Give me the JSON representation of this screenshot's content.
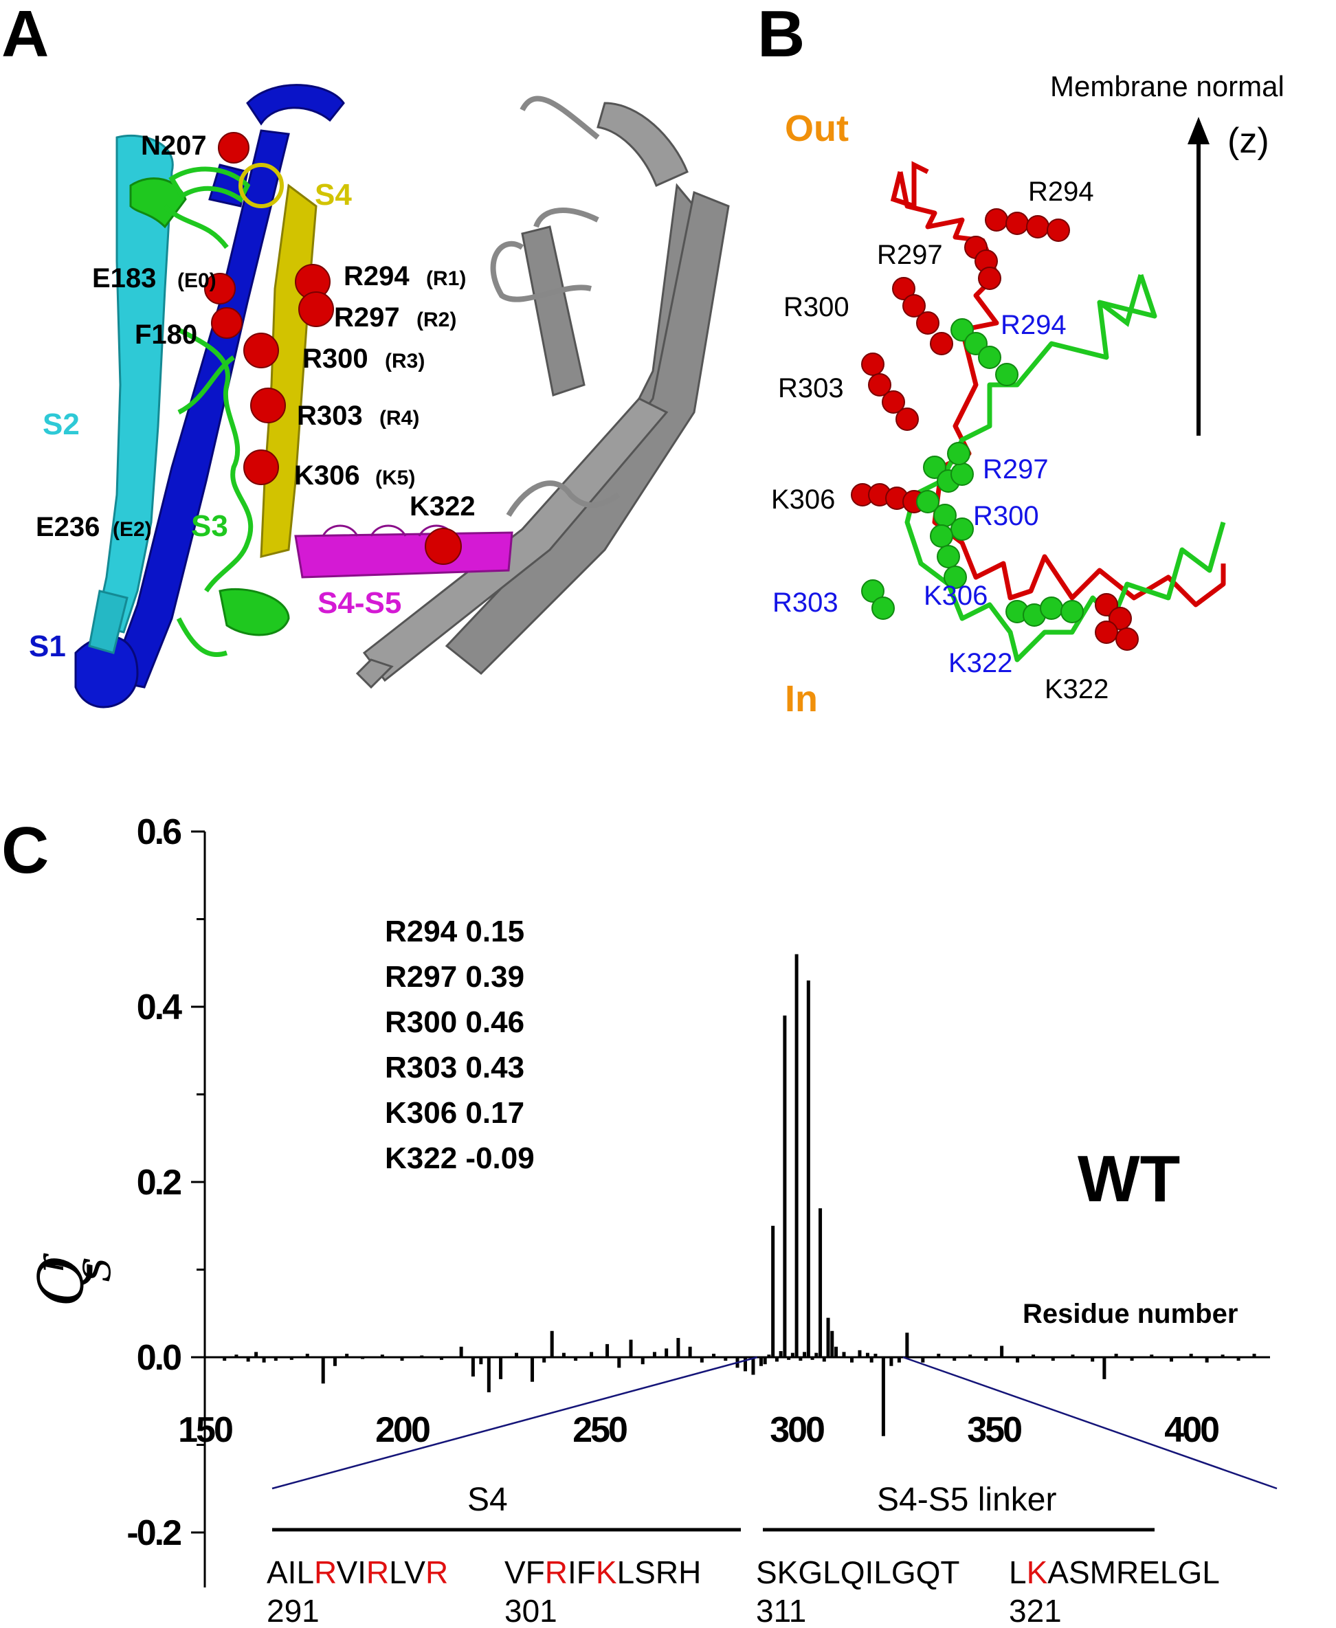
{
  "figure": {
    "panel_labels": [
      "A",
      "B",
      "C"
    ],
    "panel_a": {
      "residue_labels": [
        "N207",
        "E183",
        "F180",
        "E236",
        "R294",
        "R297",
        "R300",
        "R303",
        "K306",
        "K322"
      ],
      "residue_sublabels": [
        "(E0)",
        "(E2)",
        "(R1)",
        "(R2)",
        "(R3)",
        "(R4)",
        "(K5)"
      ],
      "segment_labels": [
        "S1",
        "S2",
        "S3",
        "S4",
        "S4-S5"
      ],
      "colors": {
        "S1": "#0a14c8",
        "S2": "#2ec9d6",
        "S3": "#1fc81f",
        "S4": "#d2c300",
        "S4S5": "#d41ad4",
        "pore": "#8a8a8a",
        "atom": "#d40000"
      }
    },
    "panel_b": {
      "out_label": "Out",
      "in_label": "In",
      "axis_label_1": "Membrane normal",
      "axis_label_2": "(z)",
      "red_labels": [
        "R294",
        "R297",
        "R300",
        "R303",
        "K306",
        "K322"
      ],
      "blue_labels": [
        "R294",
        "R297",
        "R300",
        "R303",
        "K306",
        "K322"
      ],
      "colors": {
        "out_in": "#f0900a",
        "blue_text": "#1414e6",
        "red_chain": "#d40000",
        "green_chain": "#1fc81f"
      }
    }
  },
  "chart_data": {
    "type": "bar",
    "title": "",
    "xlabel": "Residue number",
    "ylabel": "Q_S^r",
    "xlim": [
      150,
      420
    ],
    "ylim": [
      -0.25,
      0.6
    ],
    "x_ticks": [
      "150",
      "200",
      "250",
      "300",
      "350",
      "400"
    ],
    "y_ticks": [
      "0.6",
      "0.4",
      "0.2",
      "0.0",
      "-0.2"
    ],
    "annotation_lines": [
      "R294 0.15",
      "R297 0.39",
      "R300 0.46",
      "R303 0.43",
      "K306 0.17",
      "K322 -0.09"
    ],
    "condition_label": "WT",
    "series": [
      {
        "name": "WT",
        "x": [
          155,
          158,
          161,
          163,
          165,
          168,
          172,
          176,
          180,
          183,
          186,
          190,
          195,
          200,
          205,
          210,
          215,
          218,
          220,
          222,
          225,
          229,
          233,
          236,
          238,
          241,
          244,
          248,
          252,
          255,
          258,
          261,
          264,
          267,
          270,
          273,
          276,
          279,
          282,
          285,
          287,
          289,
          291,
          292,
          293,
          294,
          295,
          296,
          297,
          298,
          299,
          300,
          301,
          302,
          303,
          304,
          305,
          306,
          307,
          308,
          309,
          310,
          312,
          314,
          316,
          318,
          319,
          320,
          322,
          324,
          326,
          328,
          332,
          336,
          340,
          344,
          348,
          352,
          356,
          360,
          365,
          370,
          375,
          378,
          381,
          385,
          390,
          395,
          400,
          404,
          408,
          412,
          416
        ],
        "values": [
          -0.004,
          0.003,
          -0.005,
          0.006,
          -0.006,
          -0.004,
          -0.003,
          0.004,
          -0.03,
          -0.01,
          0.004,
          -0.002,
          0.003,
          -0.004,
          0.002,
          -0.003,
          0.012,
          -0.022,
          -0.008,
          -0.04,
          -0.025,
          0.005,
          -0.028,
          -0.006,
          0.03,
          0.005,
          -0.004,
          0.006,
          0.015,
          -0.012,
          0.02,
          -0.008,
          0.006,
          0.01,
          0.022,
          0.012,
          -0.006,
          0.004,
          -0.004,
          -0.012,
          -0.016,
          -0.02,
          -0.01,
          -0.008,
          0.003,
          0.15,
          -0.005,
          0.007,
          0.39,
          -0.003,
          0.005,
          0.46,
          -0.004,
          0.006,
          0.43,
          -0.003,
          0.005,
          0.17,
          -0.005,
          0.045,
          0.03,
          0.012,
          0.006,
          -0.006,
          0.008,
          0.005,
          -0.006,
          0.004,
          -0.09,
          -0.01,
          -0.006,
          0.028,
          -0.006,
          0.004,
          -0.004,
          0.003,
          -0.004,
          0.013,
          -0.006,
          0.003,
          -0.004,
          0.003,
          -0.005,
          -0.025,
          0.004,
          -0.004,
          0.003,
          -0.005,
          0.004,
          -0.006,
          0.003,
          -0.004,
          0.004
        ]
      }
    ],
    "zoom_labels": {
      "s4": "S4",
      "linker": "S4-S5 linker"
    },
    "sequence_groups": [
      [
        {
          "t": "AIL",
          "red": false
        },
        {
          "t": "R",
          "red": true
        },
        {
          "t": "VI",
          "red": false
        },
        {
          "t": "R",
          "red": true
        },
        {
          "t": "LV",
          "red": false
        },
        {
          "t": "R",
          "red": true
        }
      ],
      [
        {
          "t": "VF",
          "red": false
        },
        {
          "t": "R",
          "red": true
        },
        {
          "t": "IF",
          "red": false
        },
        {
          "t": "K",
          "red": true
        },
        {
          "t": "LSRH",
          "red": false
        }
      ],
      [
        {
          "t": "SKGLQILGQT",
          "red": false
        }
      ],
      [
        {
          "t": "L",
          "red": false
        },
        {
          "t": "K",
          "red": true
        },
        {
          "t": "ASMRELGL",
          "red": false
        }
      ]
    ],
    "sequence_numbers": [
      "291",
      "301",
      "311",
      "321"
    ],
    "colors": {
      "bar": "#000000",
      "zoom_line": "#141478",
      "highlight": "#e01010"
    }
  }
}
